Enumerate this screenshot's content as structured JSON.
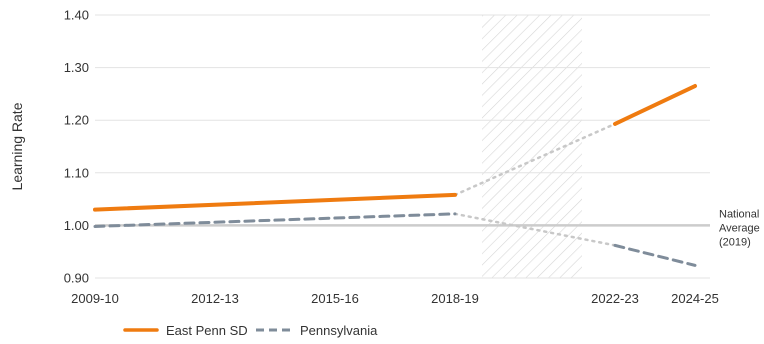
{
  "chart_data": {
    "type": "line",
    "ylabel": "Learning Rate",
    "ylim": [
      0.9,
      1.4
    ],
    "y_ticks": [
      "0.90",
      "1.00",
      "1.10",
      "1.20",
      "1.30",
      "1.40"
    ],
    "x_ticks": [
      "2009-10",
      "2012-13",
      "2015-16",
      "2018-19",
      "2022-23",
      "2024-25"
    ],
    "grid": true,
    "legend_position": "bottom-left",
    "reference_line": {
      "y": 1.0,
      "label": [
        "National",
        "Average",
        "(2019)"
      ],
      "color": "#cccccc"
    },
    "shaded_gap": {
      "from": "2019-20",
      "to": "2021-22",
      "pattern": "diagonal-hatch"
    },
    "series": [
      {
        "name": "East Penn SD",
        "style": "solid",
        "color": "#ef7b10",
        "points": [
          {
            "x": "2009-10",
            "y": 1.03
          },
          {
            "x": "2018-19",
            "y": 1.058
          },
          {
            "x": "2022-23",
            "y": 1.193
          },
          {
            "x": "2024-25",
            "y": 1.265
          }
        ],
        "gap_between": [
          "2018-19",
          "2022-23"
        ]
      },
      {
        "name": "Pennsylvania",
        "style": "dashed",
        "color": "#7f8c9a",
        "points": [
          {
            "x": "2009-10",
            "y": 0.998
          },
          {
            "x": "2018-19",
            "y": 1.022
          },
          {
            "x": "2022-23",
            "y": 0.962
          },
          {
            "x": "2024-25",
            "y": 0.924
          }
        ],
        "gap_between": [
          "2018-19",
          "2022-23"
        ]
      }
    ],
    "gap_line_color": "#c8c8c8"
  }
}
